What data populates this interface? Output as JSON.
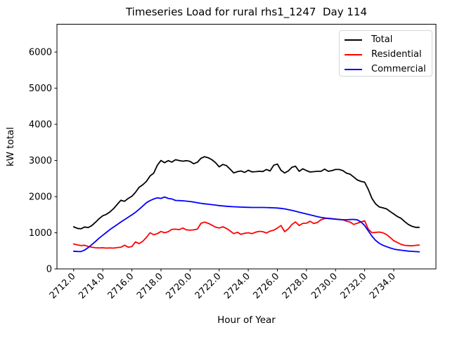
{
  "chart_data": {
    "type": "line",
    "title": "Timeseries Load for rural rhs1_1247  Day 114",
    "xlabel": "Hour of Year",
    "ylabel": "kW total",
    "grid": false,
    "legend_position": "upper right",
    "xlim": [
      2710.85,
      2736.9
    ],
    "ylim": [
      0,
      6770
    ],
    "xticks": [
      2712,
      2714,
      2716,
      2718,
      2720,
      2722,
      2724,
      2726,
      2728,
      2730,
      2732,
      2734
    ],
    "xtick_labels": [
      "2712.0",
      "2714.0",
      "2716.0",
      "2718.0",
      "2720.0",
      "2722.0",
      "2724.0",
      "2726.0",
      "2728.0",
      "2730.0",
      "2732.0",
      "2734.0"
    ],
    "yticks": [
      0,
      1000,
      2000,
      3000,
      4000,
      5000,
      6000
    ],
    "ytick_labels": [
      "0",
      "1000",
      "2000",
      "3000",
      "4000",
      "5000",
      "6000"
    ],
    "x": [
      2712.0,
      2712.25,
      2712.5,
      2712.75,
      2713.0,
      2713.25,
      2713.5,
      2713.75,
      2714.0,
      2714.25,
      2714.5,
      2714.75,
      2715.0,
      2715.25,
      2715.5,
      2715.75,
      2716.0,
      2716.25,
      2716.5,
      2716.75,
      2717.0,
      2717.25,
      2717.5,
      2717.75,
      2718.0,
      2718.25,
      2718.5,
      2718.75,
      2719.0,
      2719.25,
      2719.5,
      2719.75,
      2720.0,
      2720.25,
      2720.5,
      2720.75,
      2721.0,
      2721.25,
      2721.5,
      2721.75,
      2722.0,
      2722.25,
      2722.5,
      2722.75,
      2723.0,
      2723.25,
      2723.5,
      2723.75,
      2724.0,
      2724.25,
      2724.5,
      2724.75,
      2725.0,
      2725.25,
      2725.5,
      2725.75,
      2726.0,
      2726.25,
      2726.5,
      2726.75,
      2727.0,
      2727.25,
      2727.5,
      2727.75,
      2728.0,
      2728.25,
      2728.5,
      2728.75,
      2729.0,
      2729.25,
      2729.5,
      2729.75,
      2730.0,
      2730.25,
      2730.5,
      2730.75,
      2731.0,
      2731.25,
      2731.5,
      2731.75,
      2732.0,
      2732.25,
      2732.5,
      2732.75,
      2733.0,
      2733.25,
      2733.5,
      2733.75,
      2734.0,
      2734.25,
      2734.5,
      2734.75,
      2735.0,
      2735.25,
      2735.5,
      2735.75
    ],
    "series": [
      {
        "name": "Total",
        "color": "#000000",
        "values": [
          1165,
          1120,
          1110,
          1160,
          1145,
          1200,
          1290,
          1390,
          1470,
          1510,
          1580,
          1670,
          1790,
          1900,
          1870,
          1950,
          2010,
          2120,
          2260,
          2330,
          2420,
          2570,
          2650,
          2870,
          3000,
          2940,
          2995,
          2955,
          3020,
          3000,
          2980,
          2995,
          2975,
          2910,
          2950,
          3060,
          3105,
          3075,
          3020,
          2940,
          2825,
          2890,
          2860,
          2760,
          2655,
          2690,
          2710,
          2670,
          2730,
          2685,
          2690,
          2700,
          2695,
          2750,
          2710,
          2870,
          2900,
          2730,
          2655,
          2710,
          2810,
          2840,
          2700,
          2770,
          2720,
          2680,
          2690,
          2700,
          2700,
          2760,
          2700,
          2720,
          2750,
          2750,
          2720,
          2650,
          2620,
          2540,
          2460,
          2420,
          2400,
          2200,
          1950,
          1800,
          1715,
          1690,
          1660,
          1590,
          1520,
          1450,
          1400,
          1310,
          1230,
          1180,
          1150,
          1150
        ]
      },
      {
        "name": "Residential",
        "color": "#ff0000",
        "values": [
          690,
          665,
          645,
          655,
          620,
          600,
          585,
          580,
          585,
          575,
          580,
          575,
          590,
          600,
          655,
          600,
          620,
          745,
          700,
          765,
          870,
          1000,
          945,
          975,
          1035,
          1000,
          1030,
          1095,
          1100,
          1085,
          1130,
          1080,
          1070,
          1080,
          1100,
          1260,
          1295,
          1260,
          1210,
          1155,
          1130,
          1165,
          1120,
          1050,
          975,
          1015,
          955,
          985,
          1000,
          975,
          1015,
          1040,
          1030,
          995,
          1045,
          1070,
          1130,
          1200,
          1030,
          1110,
          1230,
          1300,
          1200,
          1260,
          1265,
          1320,
          1255,
          1285,
          1360,
          1390,
          1400,
          1390,
          1380,
          1370,
          1360,
          1320,
          1295,
          1230,
          1265,
          1300,
          1330,
          1100,
          1000,
          1010,
          1020,
          1000,
          950,
          870,
          780,
          730,
          680,
          650,
          645,
          640,
          650,
          660
        ]
      },
      {
        "name": "Commercial",
        "color": "#0000ff",
        "values": [
          490,
          482,
          480,
          520,
          590,
          675,
          760,
          850,
          930,
          1010,
          1090,
          1160,
          1230,
          1300,
          1365,
          1430,
          1495,
          1565,
          1650,
          1740,
          1830,
          1890,
          1935,
          1965,
          1950,
          1990,
          1950,
          1935,
          1895,
          1890,
          1885,
          1875,
          1865,
          1850,
          1830,
          1815,
          1800,
          1790,
          1778,
          1765,
          1752,
          1742,
          1732,
          1725,
          1720,
          1715,
          1710,
          1706,
          1703,
          1700,
          1700,
          1700,
          1700,
          1698,
          1694,
          1690,
          1685,
          1675,
          1660,
          1640,
          1620,
          1595,
          1570,
          1545,
          1520,
          1495,
          1470,
          1445,
          1425,
          1410,
          1395,
          1385,
          1375,
          1365,
          1360,
          1360,
          1365,
          1370,
          1355,
          1300,
          1200,
          1050,
          905,
          790,
          710,
          655,
          615,
          580,
          550,
          530,
          517,
          505,
          492,
          485,
          478,
          472
        ]
      }
    ]
  }
}
